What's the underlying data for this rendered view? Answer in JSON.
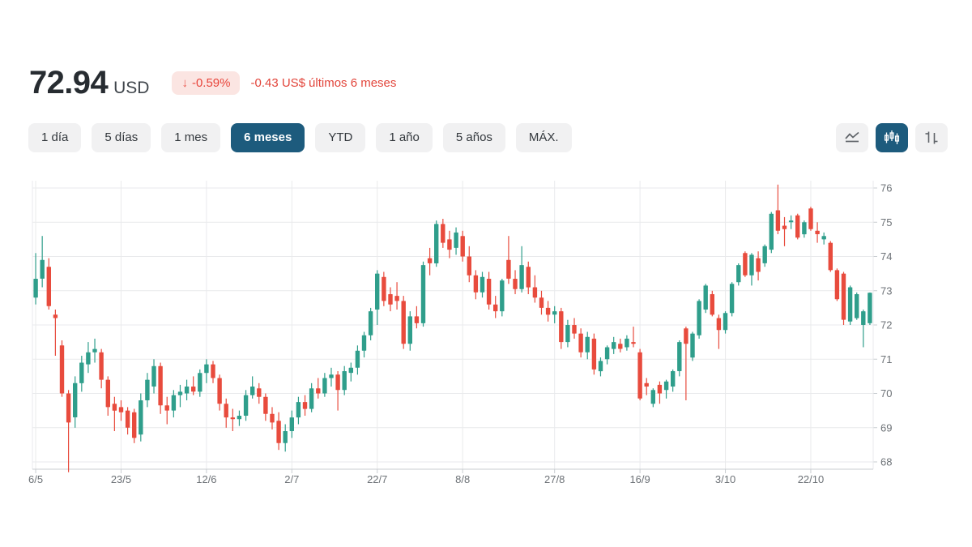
{
  "header": {
    "price": "72.94",
    "currency": "USD",
    "down_arrow": "↓",
    "change_percent": "-0.59%",
    "change_amount": "-0.43 US$",
    "change_period": "últimos 6 meses"
  },
  "range_tabs": [
    {
      "label": "1 día",
      "selected": false
    },
    {
      "label": "5 días",
      "selected": false
    },
    {
      "label": "1 mes",
      "selected": false
    },
    {
      "label": "6 meses",
      "selected": true
    },
    {
      "label": "YTD",
      "selected": false
    },
    {
      "label": "1 año",
      "selected": false
    },
    {
      "label": "5 años",
      "selected": false
    },
    {
      "label": "MÁX.",
      "selected": false
    }
  ],
  "chart_type_buttons": [
    {
      "name": "line-chart",
      "selected": false
    },
    {
      "name": "candlestick-chart",
      "selected": true
    },
    {
      "name": "ohlc-chart",
      "selected": false
    }
  ],
  "colors": {
    "up": "#2f9e8b",
    "down": "#e84b3d",
    "accent_selected": "#1d5b7d",
    "badge_bg": "#fbe5e2",
    "negative_text": "#e2443a",
    "grid": "#e9eaec",
    "axis_line": "#c9cdd1",
    "axis_text": "#6d7277",
    "icon_gray": "#5f6368"
  },
  "chart_data": {
    "type": "candlestick",
    "title": "",
    "ylabel": "",
    "xlabel": "",
    "grid": true,
    "y_range": [
      68,
      76
    ],
    "y_ticks": [
      76,
      75,
      74,
      73,
      72,
      71,
      70,
      69,
      68
    ],
    "y_axis_side": "right",
    "x_ticks": [
      {
        "label": "6/5",
        "index": 0
      },
      {
        "label": "23/5",
        "index": 13
      },
      {
        "label": "12/6",
        "index": 26
      },
      {
        "label": "2/7",
        "index": 39
      },
      {
        "label": "22/7",
        "index": 52
      },
      {
        "label": "8/8",
        "index": 65
      },
      {
        "label": "27/8",
        "index": 79
      },
      {
        "label": "16/9",
        "index": 92
      },
      {
        "label": "3/10",
        "index": 105
      },
      {
        "label": "22/10",
        "index": 118
      }
    ],
    "ohlc_format": [
      "open",
      "high",
      "low",
      "close"
    ],
    "candles": [
      [
        72.8,
        74.1,
        72.6,
        73.35
      ],
      [
        73.35,
        74.6,
        73.1,
        73.9
      ],
      [
        73.7,
        73.95,
        72.45,
        72.55
      ],
      [
        72.3,
        72.45,
        71.1,
        72.2
      ],
      [
        71.4,
        71.55,
        69.9,
        70.0
      ],
      [
        70.0,
        70.1,
        67.7,
        69.15
      ],
      [
        69.3,
        70.5,
        69.0,
        70.3
      ],
      [
        70.3,
        71.1,
        70.05,
        70.9
      ],
      [
        70.85,
        71.5,
        70.6,
        71.2
      ],
      [
        71.2,
        71.6,
        70.9,
        71.3
      ],
      [
        71.2,
        71.3,
        70.15,
        70.4
      ],
      [
        70.4,
        70.5,
        69.35,
        69.6
      ],
      [
        69.7,
        69.9,
        68.9,
        69.5
      ],
      [
        69.6,
        69.8,
        69.2,
        69.45
      ],
      [
        69.5,
        69.6,
        68.8,
        69.0
      ],
      [
        69.45,
        69.55,
        68.55,
        68.7
      ],
      [
        68.8,
        70.0,
        68.6,
        69.8
      ],
      [
        69.8,
        70.6,
        69.6,
        70.4
      ],
      [
        70.2,
        71.0,
        70.0,
        70.8
      ],
      [
        70.8,
        70.9,
        69.4,
        69.65
      ],
      [
        69.65,
        69.9,
        69.1,
        69.5
      ],
      [
        69.5,
        70.1,
        69.3,
        69.95
      ],
      [
        69.95,
        70.25,
        69.6,
        70.05
      ],
      [
        70.0,
        70.4,
        69.8,
        70.2
      ],
      [
        70.2,
        70.5,
        69.95,
        70.05
      ],
      [
        70.05,
        70.7,
        69.9,
        70.6
      ],
      [
        70.6,
        71.0,
        70.3,
        70.85
      ],
      [
        70.85,
        70.95,
        70.3,
        70.45
      ],
      [
        70.45,
        70.55,
        69.5,
        69.7
      ],
      [
        69.7,
        69.85,
        69.0,
        69.3
      ],
      [
        69.3,
        69.55,
        68.9,
        69.25
      ],
      [
        69.25,
        69.5,
        69.05,
        69.35
      ],
      [
        69.35,
        70.1,
        69.2,
        69.95
      ],
      [
        69.95,
        70.5,
        69.85,
        70.2
      ],
      [
        70.15,
        70.3,
        69.7,
        69.9
      ],
      [
        69.9,
        70.0,
        69.2,
        69.4
      ],
      [
        69.4,
        69.6,
        68.95,
        69.15
      ],
      [
        69.2,
        69.45,
        68.35,
        68.55
      ],
      [
        68.55,
        69.1,
        68.3,
        68.9
      ],
      [
        68.9,
        69.5,
        68.7,
        69.3
      ],
      [
        69.3,
        69.9,
        69.1,
        69.75
      ],
      [
        69.75,
        69.95,
        69.35,
        69.55
      ],
      [
        69.55,
        70.3,
        69.45,
        70.15
      ],
      [
        70.15,
        70.45,
        69.85,
        70.0
      ],
      [
        70.0,
        70.6,
        69.9,
        70.45
      ],
      [
        70.45,
        70.75,
        70.2,
        70.55
      ],
      [
        70.55,
        70.65,
        69.5,
        70.1
      ],
      [
        70.1,
        70.8,
        69.95,
        70.65
      ],
      [
        70.6,
        70.9,
        70.35,
        70.75
      ],
      [
        70.75,
        71.4,
        70.55,
        71.25
      ],
      [
        71.25,
        71.8,
        71.05,
        71.7
      ],
      [
        71.7,
        72.5,
        71.55,
        72.4
      ],
      [
        72.45,
        73.6,
        72.0,
        73.5
      ],
      [
        73.4,
        73.55,
        72.55,
        72.7
      ],
      [
        72.9,
        73.1,
        72.4,
        72.6
      ],
      [
        72.85,
        73.25,
        72.45,
        72.7
      ],
      [
        72.7,
        72.85,
        71.3,
        71.45
      ],
      [
        71.45,
        72.4,
        71.25,
        72.25
      ],
      [
        72.25,
        72.55,
        71.9,
        72.05
      ],
      [
        72.05,
        73.85,
        71.95,
        73.75
      ],
      [
        73.95,
        74.25,
        73.45,
        73.8
      ],
      [
        73.8,
        75.05,
        73.7,
        74.95
      ],
      [
        74.95,
        75.1,
        74.25,
        74.4
      ],
      [
        74.5,
        74.75,
        73.95,
        74.2
      ],
      [
        74.25,
        74.85,
        74.05,
        74.7
      ],
      [
        74.6,
        74.75,
        73.85,
        74.0
      ],
      [
        74.0,
        74.3,
        73.25,
        73.45
      ],
      [
        73.45,
        73.6,
        72.75,
        72.95
      ],
      [
        72.95,
        73.55,
        72.8,
        73.4
      ],
      [
        73.35,
        73.55,
        72.45,
        72.6
      ],
      [
        72.6,
        72.85,
        72.2,
        72.4
      ],
      [
        72.4,
        73.35,
        72.25,
        73.3
      ],
      [
        73.9,
        74.6,
        73.2,
        73.35
      ],
      [
        73.35,
        73.6,
        72.9,
        73.05
      ],
      [
        73.05,
        74.3,
        72.95,
        73.75
      ],
      [
        73.7,
        73.85,
        72.9,
        73.1
      ],
      [
        73.1,
        73.45,
        72.65,
        72.8
      ],
      [
        72.8,
        73.0,
        72.3,
        72.5
      ],
      [
        72.5,
        72.7,
        72.1,
        72.3
      ],
      [
        72.3,
        72.55,
        72.05,
        72.4
      ],
      [
        72.4,
        72.5,
        71.3,
        71.5
      ],
      [
        71.5,
        72.15,
        71.35,
        72.0
      ],
      [
        72.0,
        72.2,
        71.6,
        71.75
      ],
      [
        71.75,
        71.9,
        71.05,
        71.2
      ],
      [
        71.2,
        71.8,
        71.0,
        71.65
      ],
      [
        71.6,
        71.75,
        70.55,
        70.7
      ],
      [
        70.65,
        71.05,
        70.5,
        70.95
      ],
      [
        71.0,
        71.4,
        70.85,
        71.35
      ],
      [
        71.3,
        71.65,
        71.15,
        71.5
      ],
      [
        71.45,
        71.6,
        71.2,
        71.3
      ],
      [
        71.35,
        71.7,
        71.25,
        71.6
      ],
      [
        71.5,
        71.95,
        71.35,
        71.45
      ],
      [
        71.2,
        71.3,
        69.8,
        69.85
      ],
      [
        70.3,
        70.45,
        69.95,
        70.2
      ],
      [
        69.7,
        70.15,
        69.6,
        70.1
      ],
      [
        70.25,
        70.35,
        69.7,
        70.0
      ],
      [
        70.1,
        70.4,
        69.85,
        70.35
      ],
      [
        70.2,
        70.7,
        70.05,
        70.65
      ],
      [
        70.65,
        71.55,
        70.5,
        71.5
      ],
      [
        71.9,
        71.95,
        69.8,
        71.45
      ],
      [
        71.05,
        71.8,
        70.95,
        71.75
      ],
      [
        71.7,
        72.75,
        71.6,
        72.7
      ],
      [
        72.45,
        73.2,
        72.35,
        73.15
      ],
      [
        72.9,
        73.0,
        72.25,
        72.3
      ],
      [
        72.2,
        72.3,
        71.3,
        71.85
      ],
      [
        71.85,
        72.4,
        71.75,
        72.35
      ],
      [
        72.35,
        73.25,
        72.25,
        73.2
      ],
      [
        73.25,
        73.8,
        73.15,
        73.75
      ],
      [
        74.1,
        74.15,
        73.4,
        73.45
      ],
      [
        73.45,
        74.1,
        73.15,
        74.05
      ],
      [
        73.95,
        74.15,
        73.3,
        73.55
      ],
      [
        73.8,
        74.35,
        73.7,
        74.3
      ],
      [
        74.2,
        75.3,
        74.1,
        75.25
      ],
      [
        75.35,
        76.1,
        74.65,
        74.75
      ],
      [
        74.9,
        75.15,
        74.3,
        74.8
      ],
      [
        75.0,
        75.2,
        74.8,
        75.05
      ],
      [
        75.2,
        75.25,
        74.5,
        74.55
      ],
      [
        74.65,
        75.05,
        74.55,
        75.0
      ],
      [
        75.4,
        75.45,
        74.75,
        74.8
      ],
      [
        74.75,
        75.0,
        74.4,
        74.65
      ],
      [
        74.5,
        74.7,
        74.35,
        74.6
      ],
      [
        74.4,
        74.45,
        73.55,
        73.6
      ],
      [
        73.6,
        73.65,
        72.7,
        72.75
      ],
      [
        73.5,
        73.55,
        72.0,
        72.15
      ],
      [
        72.1,
        73.15,
        72.0,
        73.1
      ],
      [
        72.2,
        72.95,
        72.15,
        72.9
      ],
      [
        72.0,
        72.45,
        71.35,
        72.4
      ],
      [
        72.05,
        72.95,
        72.0,
        72.94
      ]
    ]
  }
}
